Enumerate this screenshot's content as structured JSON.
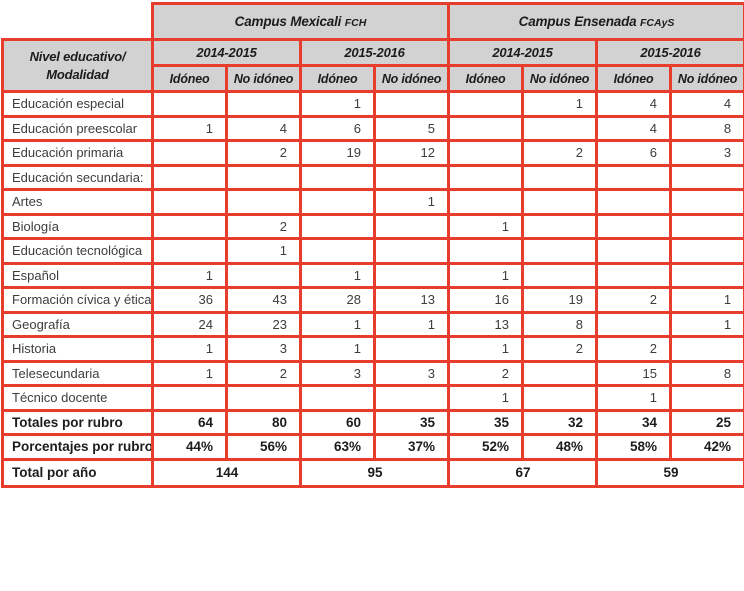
{
  "header": {
    "row_label_lines": [
      "Nivel educativo/",
      "Modalidad"
    ],
    "campuses": [
      {
        "name": "Campus Mexicali",
        "acronym": "FCH"
      },
      {
        "name": "Campus Ensenada",
        "acronym": "FCAyS"
      }
    ],
    "years": [
      "2014-2015",
      "2015-2016",
      "2014-2015",
      "2015-2016"
    ],
    "subheaders": [
      "Idóneo",
      "No idóneo",
      "Idóneo",
      "No idóneo",
      "Idóneo",
      "No idóneo",
      "Idóneo",
      "No idóneo"
    ]
  },
  "rows": [
    {
      "label": "Educación especial",
      "values": [
        "",
        "",
        "1",
        "",
        "",
        "1",
        "4",
        "4"
      ]
    },
    {
      "label": "Educación preescolar",
      "values": [
        "1",
        "4",
        "6",
        "5",
        "",
        "",
        "4",
        "8"
      ]
    },
    {
      "label": "Educación primaria",
      "values": [
        "",
        "2",
        "19",
        "12",
        "",
        "2",
        "6",
        "3"
      ]
    },
    {
      "label": "Educación secundaria:",
      "values": [
        "",
        "",
        "",
        "",
        "",
        "",
        "",
        ""
      ]
    },
    {
      "label": "Artes",
      "values": [
        "",
        "",
        "",
        "1",
        "",
        "",
        "",
        ""
      ]
    },
    {
      "label": "Biología",
      "values": [
        "",
        "2",
        "",
        "",
        "1",
        "",
        "",
        ""
      ]
    },
    {
      "label": "Educación tecnológica",
      "values": [
        "",
        "1",
        "",
        "",
        "",
        "",
        "",
        ""
      ]
    },
    {
      "label": "Español",
      "values": [
        "1",
        "",
        "1",
        "",
        "1",
        "",
        "",
        ""
      ]
    },
    {
      "label": "Formación cívica y ética",
      "values": [
        "36",
        "43",
        "28",
        "13",
        "16",
        "19",
        "2",
        "1"
      ]
    },
    {
      "label": "Geografía",
      "values": [
        "24",
        "23",
        "1",
        "1",
        "13",
        "8",
        "",
        "1"
      ]
    },
    {
      "label": "Historia",
      "values": [
        "1",
        "3",
        "1",
        "",
        "1",
        "2",
        "2",
        ""
      ]
    },
    {
      "label": "Telesecundaria",
      "values": [
        "1",
        "2",
        "3",
        "3",
        "2",
        "",
        "15",
        "8"
      ]
    },
    {
      "label": "Técnico docente",
      "values": [
        "",
        "",
        "",
        "",
        "1",
        "",
        "1",
        ""
      ]
    }
  ],
  "totals_row": {
    "label": "Totales por rubro",
    "values": [
      "64",
      "80",
      "60",
      "35",
      "35",
      "32",
      "34",
      "25"
    ]
  },
  "percentages_row": {
    "label": "Porcentajes por rubro",
    "values": [
      "44%",
      "56%",
      "63%",
      "37%",
      "52%",
      "48%",
      "58%",
      "42%"
    ]
  },
  "year_totals_row": {
    "label": "Total por año",
    "values": [
      "144",
      "95",
      "67",
      "59"
    ]
  },
  "colors": {
    "border_red": "#e83d2c",
    "header_bg": "#d2d2d2",
    "body_text": "#3d3d3d",
    "bold_text": "#1c1c1c"
  }
}
